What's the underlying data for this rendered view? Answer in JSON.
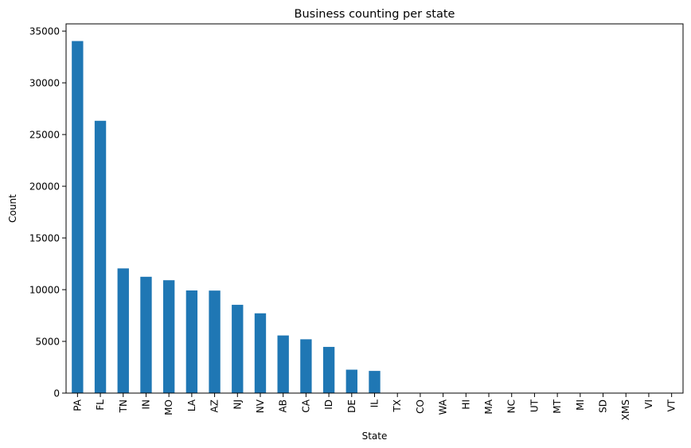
{
  "chart_data": {
    "type": "bar",
    "title": "Business counting per state",
    "xlabel": "State",
    "ylabel": "Count",
    "categories": [
      "PA",
      "FL",
      "TN",
      "IN",
      "MO",
      "LA",
      "AZ",
      "NJ",
      "NV",
      "AB",
      "CA",
      "ID",
      "DE",
      "IL",
      "TX",
      "CO",
      "WA",
      "HI",
      "MA",
      "NC",
      "UT",
      "MT",
      "MI",
      "SD",
      "XMS",
      "VI",
      "VT"
    ],
    "values": [
      34039,
      26330,
      12056,
      11247,
      10913,
      9924,
      9912,
      8536,
      7715,
      5573,
      5203,
      4467,
      2265,
      2145,
      4,
      3,
      2,
      2,
      2,
      1,
      1,
      1,
      1,
      1,
      1,
      1,
      1
    ],
    "ylim": [
      0,
      35700
    ],
    "yticks": [
      0,
      5000,
      10000,
      15000,
      20000,
      25000,
      30000,
      35000
    ],
    "bar_color": "#1f77b4",
    "grid": false,
    "legend": "none"
  }
}
